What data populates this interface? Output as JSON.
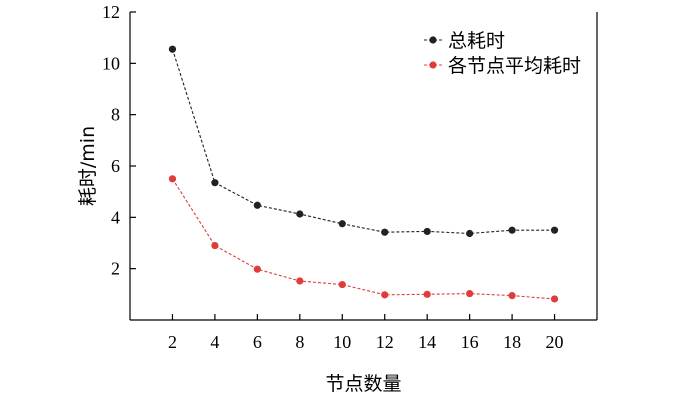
{
  "chart_data": {
    "type": "line",
    "xlabel": "节点数量",
    "ylabel": "耗时/min",
    "x": [
      2,
      4,
      6,
      8,
      10,
      12,
      14,
      16,
      18,
      20
    ],
    "xticks": [
      "2",
      "4",
      "6",
      "8",
      "10",
      "12",
      "14",
      "16",
      "18",
      "20"
    ],
    "yticks": [
      "2",
      "4",
      "6",
      "8",
      "10",
      "12"
    ],
    "xlim": [
      0,
      22
    ],
    "ylim": [
      0,
      12
    ],
    "legend_position": "top-right",
    "grid": false,
    "series": [
      {
        "name": "总耗时",
        "color": "#222222",
        "values": [
          10.55,
          5.35,
          4.47,
          4.13,
          3.75,
          3.42,
          3.45,
          3.37,
          3.5,
          3.5
        ]
      },
      {
        "name": "各节点平均耗时",
        "color": "#e03c3c",
        "values": [
          5.5,
          2.9,
          1.98,
          1.52,
          1.38,
          0.98,
          1.0,
          1.03,
          0.95,
          0.82
        ]
      }
    ]
  }
}
